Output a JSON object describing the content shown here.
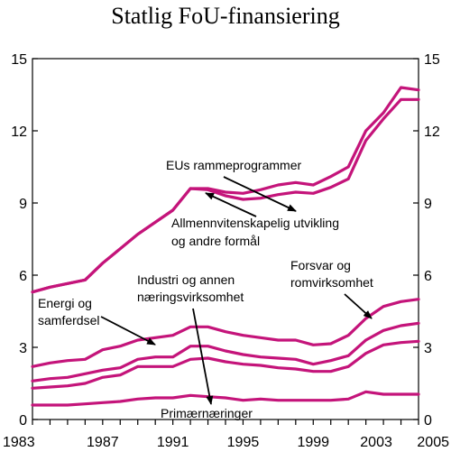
{
  "chart_data": {
    "type": "line",
    "title": "Statlig  FoU-finansiering",
    "xlabel": "",
    "ylabel": "",
    "xlim": [
      1983,
      2005
    ],
    "ylim": [
      0,
      15
    ],
    "x_ticks": [
      "1983",
      "1987",
      "1991",
      "1995",
      "1999",
      "2003",
      "2005"
    ],
    "y_ticks": [
      "0",
      "3",
      "6",
      "9",
      "12",
      "15"
    ],
    "grid": false,
    "line_color": "#c4147a",
    "x": [
      1983,
      1984,
      1985,
      1986,
      1987,
      1988,
      1989,
      1990,
      1991,
      1992,
      1993,
      1994,
      1995,
      1996,
      1997,
      1998,
      1999,
      2000,
      2001,
      2002,
      2003,
      2004,
      2005
    ],
    "series": [
      {
        "values": [
          5.3,
          5.5,
          5.65,
          5.8,
          6.5,
          7.1,
          7.7,
          8.2,
          8.7,
          9.6,
          9.6,
          9.45,
          9.4,
          9.55,
          9.75,
          9.85,
          9.75,
          10.1,
          10.5,
          12.0,
          12.75,
          13.8,
          13.7
        ]
      },
      {
        "values": [
          5.3,
          5.5,
          5.65,
          5.8,
          6.5,
          7.1,
          7.7,
          8.2,
          8.7,
          9.6,
          9.55,
          9.3,
          9.15,
          9.2,
          9.35,
          9.45,
          9.4,
          9.65,
          10.0,
          11.6,
          12.5,
          13.3,
          13.3
        ]
      },
      {
        "values": [
          2.2,
          2.35,
          2.45,
          2.5,
          2.9,
          3.05,
          3.3,
          3.4,
          3.5,
          3.85,
          3.85,
          3.65,
          3.5,
          3.4,
          3.3,
          3.3,
          3.1,
          3.15,
          3.5,
          4.2,
          4.7,
          4.9,
          5.0
        ]
      },
      {
        "values": [
          1.6,
          1.7,
          1.75,
          1.9,
          2.05,
          2.15,
          2.5,
          2.6,
          2.6,
          3.05,
          3.05,
          2.85,
          2.7,
          2.6,
          2.55,
          2.5,
          2.3,
          2.45,
          2.65,
          3.3,
          3.7,
          3.9,
          4.0
        ]
      },
      {
        "values": [
          1.3,
          1.35,
          1.4,
          1.5,
          1.75,
          1.85,
          2.2,
          2.2,
          2.2,
          2.5,
          2.55,
          2.4,
          2.3,
          2.25,
          2.15,
          2.1,
          2.0,
          2.0,
          2.2,
          2.75,
          3.1,
          3.2,
          3.25
        ]
      },
      {
        "values": [
          0.6,
          0.6,
          0.6,
          0.65,
          0.7,
          0.75,
          0.85,
          0.9,
          0.9,
          1.0,
          0.95,
          0.9,
          0.8,
          0.85,
          0.8,
          0.8,
          0.8,
          0.8,
          0.85,
          1.15,
          1.05,
          1.05,
          1.05
        ]
      }
    ],
    "annotations": [
      {
        "text": "EUs rammeprogrammer",
        "points_to": 0
      },
      {
        "text": "Allmennvitenskapelig utvikling",
        "points_to": 1
      },
      {
        "text": "og andre formål",
        "points_to": 1
      },
      {
        "text": "Forsvar og",
        "points_to": 2
      },
      {
        "text": "romvirksomhet",
        "points_to": 2
      },
      {
        "text": "Energi og",
        "points_to": 3
      },
      {
        "text": "samferdsel",
        "points_to": 3
      },
      {
        "text": "Industri og annen",
        "points_to": 4
      },
      {
        "text": "næringsvirksomhet",
        "points_to": 4
      },
      {
        "text": "Primærnæringer",
        "points_to": 5
      }
    ]
  }
}
